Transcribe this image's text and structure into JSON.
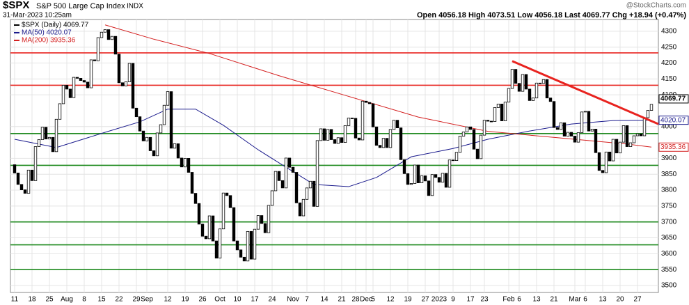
{
  "chart_data": {
    "type": "candlestick",
    "title": "$SPX",
    "subtitle": "S&P 500 Large Cap Index",
    "exchange": "INDX",
    "timestamp": "31-Mar-2023 10:25am",
    "quote": "Open 4056.18  High 4073.51  Low 4056.18  Last 4069.77  Chg +18.94 (+0.47%)",
    "credit": "@StockCharts.com",
    "price": {
      "name": "$SPX (Daily) 4069.77",
      "color": "#000000",
      "open": [
        3880,
        3854,
        3818,
        3801,
        3790,
        3863,
        3830,
        3937,
        3959,
        3998,
        3961,
        3966,
        3921,
        4023,
        4072,
        4130,
        4118,
        4091,
        4155,
        4152,
        4145,
        4140,
        4122,
        4210,
        4207,
        4280,
        4297,
        4305,
        4274,
        4284,
        4228,
        4138,
        4128,
        4141,
        4199,
        4058,
        4031,
        3986,
        3955,
        3966,
        3924,
        3908,
        3980,
        4006,
        4067,
        4110,
        3932,
        3946,
        3901,
        3873,
        3900,
        3856,
        3790,
        3758,
        3693,
        3655,
        3647,
        3719,
        3640,
        3586,
        3678,
        3791,
        3783,
        3745,
        3640,
        3612,
        3589,
        3577,
        3670,
        3583,
        3677,
        3720,
        3695,
        3666,
        3752,
        3798,
        3859,
        3830,
        3807,
        3901,
        3872,
        3856,
        3760,
        3719,
        3771,
        3807,
        3828,
        3749,
        3956,
        3993,
        3957,
        3991,
        3959,
        3947,
        3965,
        3950,
        4003,
        4027,
        4026,
        3964,
        3958,
        4080,
        4076,
        4072,
        3999,
        3941,
        3934,
        3963,
        3934,
        3991,
        4020,
        3996,
        3896,
        3852,
        3818,
        3821,
        3879,
        3823,
        3845,
        3829,
        3783,
        3849,
        3840,
        3825,
        3853,
        3809,
        3895,
        3893,
        3919,
        3970,
        3983,
        3999,
        3991,
        3929,
        3899,
        3973,
        4020,
        4017,
        4016,
        4060,
        4071,
        4018,
        4077,
        4120,
        4180,
        4136,
        4111,
        4164,
        4118,
        4082,
        4090,
        4137,
        4136,
        4148,
        4090,
        4079,
        3997,
        3991,
        4012,
        3970,
        3982,
        3970,
        3951,
        3981,
        4046,
        4048,
        3986,
        3992,
        3918,
        3862,
        3855,
        3920,
        3892,
        3960,
        3917,
        3951,
        4003,
        3937,
        3949,
        3971,
        3977,
        3971,
        4028,
        4051
      ],
      "close": [
        3854,
        3818,
        3801,
        3790,
        3863,
        3830,
        3937,
        3959,
        3998,
        3961,
        3966,
        3921,
        4023,
        4072,
        4130,
        4118,
        4091,
        4155,
        4152,
        4145,
        4140,
        4122,
        4210,
        4207,
        4280,
        4297,
        4305,
        4274,
        4284,
        4228,
        4138,
        4128,
        4141,
        4199,
        4058,
        4031,
        3986,
        3955,
        3966,
        3924,
        3908,
        3980,
        4006,
        4067,
        4110,
        3932,
        3946,
        3901,
        3873,
        3900,
        3856,
        3790,
        3758,
        3693,
        3655,
        3647,
        3719,
        3640,
        3586,
        3678,
        3791,
        3783,
        3745,
        3640,
        3612,
        3589,
        3577,
        3670,
        3583,
        3677,
        3720,
        3695,
        3666,
        3752,
        3798,
        3859,
        3830,
        3807,
        3901,
        3872,
        3856,
        3760,
        3719,
        3771,
        3807,
        3828,
        3749,
        3956,
        3993,
        3957,
        3991,
        3959,
        3947,
        3965,
        3950,
        4003,
        4027,
        4026,
        3964,
        3958,
        4080,
        4076,
        4072,
        3999,
        3941,
        3934,
        3963,
        3934,
        3991,
        4020,
        3996,
        3896,
        3852,
        3818,
        3821,
        3879,
        3823,
        3845,
        3829,
        3783,
        3849,
        3840,
        3825,
        3853,
        3809,
        3895,
        3893,
        3919,
        3970,
        3983,
        3999,
        3991,
        3929,
        3899,
        3973,
        4020,
        4017,
        4016,
        4060,
        4071,
        4018,
        4077,
        4120,
        4180,
        4136,
        4111,
        4164,
        4118,
        4082,
        4090,
        4137,
        4136,
        4148,
        4090,
        4079,
        3997,
        3991,
        4012,
        3970,
        3982,
        3970,
        3951,
        3981,
        4046,
        4048,
        3986,
        3992,
        3918,
        3862,
        3855,
        3920,
        3892,
        3960,
        3917,
        3951,
        4003,
        3937,
        3949,
        3971,
        3977,
        3971,
        4028,
        4051,
        4070
      ]
    },
    "series": [
      {
        "name": "MA(50) 4020.07",
        "color": "#1a1a8c",
        "x": [
          0,
          12,
          26,
          36,
          44,
          52,
          60,
          70,
          78,
          86,
          96,
          104,
          114,
          126,
          136,
          148,
          160,
          172,
          183
        ],
        "values": [
          3960,
          3934,
          3982,
          4015,
          4055,
          4055,
          4004,
          3927,
          3872,
          3818,
          3811,
          3840,
          3905,
          3931,
          3960,
          3986,
          4008,
          4019,
          4020.07
        ]
      },
      {
        "name": "MA(200) 3935.36",
        "color": "#d42020",
        "x": [
          26,
          40,
          56,
          76,
          96,
          116,
          136,
          156,
          176,
          183
        ],
        "values": [
          4320,
          4275,
          4230,
          4160,
          4095,
          4030,
          3985,
          3965,
          3945,
          3935.36
        ]
      }
    ],
    "last_values": [
      4069.77,
      4020.07,
      3935.36
    ],
    "levels": [
      {
        "value": 4232,
        "color": "#e8231f"
      },
      {
        "value": 4130,
        "color": "#e8231f"
      },
      {
        "value": 3978,
        "color": "#1f8a1f"
      },
      {
        "value": 3878,
        "color": "#1f8a1f"
      },
      {
        "value": 3700,
        "color": "#1f8a1f"
      },
      {
        "value": 3628,
        "color": "#1f8a1f"
      },
      {
        "value": 3550,
        "color": "#1f8a1f"
      }
    ],
    "trendline": {
      "color": "#e8231f",
      "x": [
        143,
        185
      ],
      "values": [
        4206,
        4008
      ]
    },
    "xlim": [
      -1.2,
      185
    ],
    "ylim": [
      3478,
      4337
    ],
    "yticks": [
      3500,
      3550,
      3600,
      3650,
      3700,
      3750,
      3800,
      3850,
      3900,
      4000,
      4100,
      4150,
      4200,
      4250,
      4300
    ],
    "xticks": [
      {
        "value": 0,
        "label": "11"
      },
      {
        "value": 5,
        "label": "18"
      },
      {
        "value": 10,
        "label": "25"
      },
      {
        "value": 15,
        "label": "Aug"
      },
      {
        "value": 20,
        "label": "8"
      },
      {
        "value": 25,
        "label": "15"
      },
      {
        "value": 30,
        "label": "22"
      },
      {
        "value": 35,
        "label": "29"
      },
      {
        "value": 38,
        "label": "Sep"
      },
      {
        "value": 44,
        "label": "12"
      },
      {
        "value": 49,
        "label": "19"
      },
      {
        "value": 54,
        "label": "26"
      },
      {
        "value": 59,
        "label": "Oct"
      },
      {
        "value": 64,
        "label": "10"
      },
      {
        "value": 69,
        "label": "17"
      },
      {
        "value": 74,
        "label": "24"
      },
      {
        "value": 80,
        "label": "Nov"
      },
      {
        "value": 84,
        "label": "7"
      },
      {
        "value": 89,
        "label": "14"
      },
      {
        "value": 94,
        "label": "21"
      },
      {
        "value": 98,
        "label": "28"
      },
      {
        "value": 101,
        "label": "Dec"
      },
      {
        "value": 103,
        "label": "5"
      },
      {
        "value": 108,
        "label": "12"
      },
      {
        "value": 113,
        "label": "19"
      },
      {
        "value": 118,
        "label": "27"
      },
      {
        "value": 122,
        "label": "2023"
      },
      {
        "value": 126,
        "label": "9"
      },
      {
        "value": 131,
        "label": "17"
      },
      {
        "value": 135,
        "label": "23"
      },
      {
        "value": 142,
        "label": "Feb"
      },
      {
        "value": 145,
        "label": "6"
      },
      {
        "value": 150,
        "label": "13"
      },
      {
        "value": 155,
        "label": "21"
      },
      {
        "value": 161,
        "label": "Mar"
      },
      {
        "value": 164,
        "label": "6"
      },
      {
        "value": 169,
        "label": "13"
      },
      {
        "value": 174,
        "label": "20"
      },
      {
        "value": 179,
        "label": "27"
      }
    ],
    "grid": true
  }
}
